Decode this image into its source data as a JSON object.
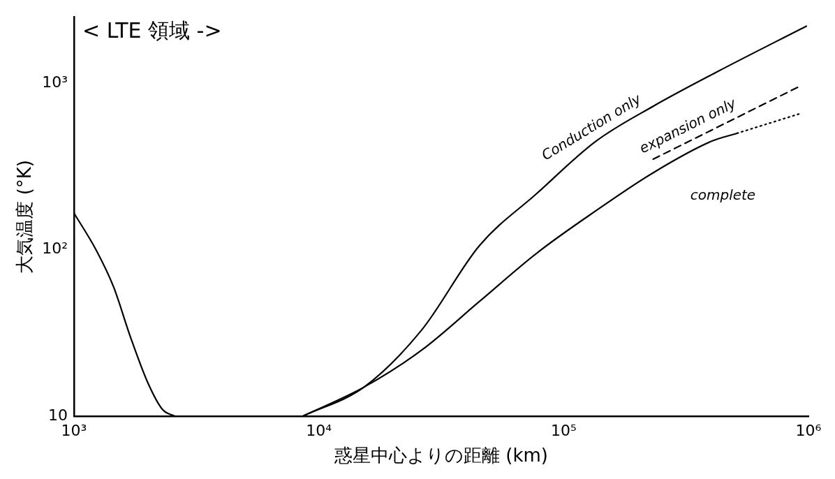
{
  "chart_data": {
    "type": "line",
    "xlabel": "惑星中心よりの距離 (km)",
    "ylabel": "大気温度 (°K)",
    "annotations": [
      "< LTE 領域 ->"
    ],
    "log": "xy",
    "grid": false,
    "legend": false,
    "marker": "none",
    "xlim": [
      1000,
      1000000
    ],
    "ylim": [
      10,
      2500
    ],
    "xticks": [
      {
        "value": 1000,
        "label": "10³"
      },
      {
        "value": 10000,
        "label": "10⁴"
      },
      {
        "value": 100000,
        "label": "10⁵"
      },
      {
        "value": 1000000,
        "label": "10⁶"
      }
    ],
    "yticks": [
      10,
      {
        "value": 100,
        "label": "10²"
      },
      {
        "value": 1000,
        "label": "10³"
      }
    ],
    "series": [
      {
        "color": "#000000",
        "line_style": "solid",
        "x": [
          1000,
          1230,
          1450,
          1700,
          2000,
          2300,
          2600
        ],
        "values": [
          166,
          100,
          60,
          30,
          16,
          11,
          10
        ]
      },
      {
        "name": "Conduction only",
        "color": "#000000",
        "line_style": "solid",
        "x": [
          8550,
          15300,
          26300,
          45300,
          78000,
          135000,
          232000,
          428000,
          980000
        ],
        "values": [
          10,
          15,
          33,
          106,
          219,
          447,
          727,
          1180,
          2200
        ]
      },
      {
        "name": "expansion only",
        "color": "#000000",
        "line_style": "dashed",
        "x": [
          232000,
          910000
        ],
        "values": [
          350,
          950
        ]
      },
      {
        "name": "complete",
        "color": "#000000",
        "line_style": "solid",
        "x": [
          8550,
          15300,
          26300,
          45300,
          78000,
          135000,
          232000,
          400000,
          510000
        ],
        "values": [
          10,
          15,
          25,
          49,
          96,
          171,
          290,
          447,
          500
        ]
      },
      {
        "color": "#000000",
        "line_style": "dotted",
        "x": [
          510000,
          935000
        ],
        "values": [
          500,
          660
        ]
      }
    ]
  }
}
